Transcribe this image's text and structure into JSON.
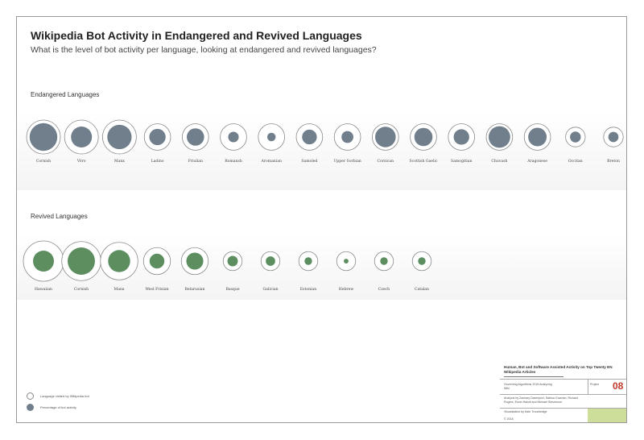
{
  "title": "Wikipedia Bot Activity in Endangered and Revived Languages",
  "subtitle": "What is the level of bot activity per language, looking at endangered and revived languages?",
  "colors": {
    "endangered_fill": "#717f8c",
    "revived_fill": "#5c8e5f",
    "outline": "#8a8a8a",
    "accent_red": "#c0392b",
    "swatch_green": "#cddd9a"
  },
  "chart_data": [
    {
      "type": "bubble",
      "title": "Endangered Languages",
      "categories": [
        "Cornish",
        "Vöro",
        "Manx",
        "Ladino",
        "Friulian",
        "Romansh",
        "Aromanian",
        "Samoled",
        "Upper Sorbian",
        "Corsican",
        "Scottish Gaelic",
        "Samogitian",
        "Chuvash",
        "Aragonese",
        "Occitan",
        "Breton"
      ],
      "series": [
        {
          "name": "Language visited by Wikipedia bot",
          "values": [
            1.0,
            1.0,
            1.0,
            1.0,
            1.0,
            1.0,
            1.0,
            1.0,
            1.0,
            1.0,
            1.0,
            1.0,
            1.0,
            1.0,
            1.0,
            1.0
          ]
        },
        {
          "name": "Percentage of bot activity",
          "values": [
            0.82,
            0.62,
            0.72,
            0.62,
            0.66,
            0.4,
            0.32,
            0.56,
            0.45,
            0.78,
            0.69,
            0.59,
            0.82,
            0.7,
            0.55,
            0.52
          ]
        }
      ],
      "outer_sizes": [
        1.0,
        1.0,
        1.0,
        0.78,
        0.78,
        0.78,
        0.78,
        0.78,
        0.78,
        0.78,
        0.78,
        0.78,
        0.78,
        0.78,
        0.58,
        0.58
      ]
    },
    {
      "type": "bubble",
      "title": "Revived Languages",
      "categories": [
        "Hawaiian",
        "Cornish",
        "Manx",
        "West Frisian",
        "Belarusian",
        "Basque",
        "Galician",
        "Estonian",
        "Hebrew",
        "Czech",
        "Catalan"
      ],
      "series": [
        {
          "name": "Language visited by Wikipedia bot",
          "values": [
            1.0,
            1.0,
            1.0,
            1.0,
            1.0,
            1.0,
            1.0,
            1.0,
            1.0,
            1.0,
            1.0
          ]
        },
        {
          "name": "Percentage of bot activity",
          "values": [
            0.52,
            0.7,
            0.59,
            0.55,
            0.63,
            0.55,
            0.5,
            0.4,
            0.25,
            0.4,
            0.4
          ]
        }
      ],
      "outer_sizes": [
        1.0,
        0.97,
        0.93,
        0.67,
        0.67,
        0.47,
        0.47,
        0.47,
        0.47,
        0.47,
        0.47
      ]
    }
  ],
  "legend": {
    "outline_label": "Language visited by Wikipedia bot",
    "fill_label": "Percentage of bot activity"
  },
  "info_box": {
    "header": "Human, Bot and Software Assisted Activity on Top Twenty EN Wikipedia Articles",
    "cell1": "Governing Algorithms 2018 Analyzing Wiki",
    "cell2": "Project",
    "number": "08",
    "cell3": "Analysis by Zachary Davenport, Sabina Guzman, Richard Rogers, Erwin Hakvit and Michael Stevenson",
    "cell4": "Visualization by Kate Trounbridge",
    "cell5": "© 2018"
  }
}
